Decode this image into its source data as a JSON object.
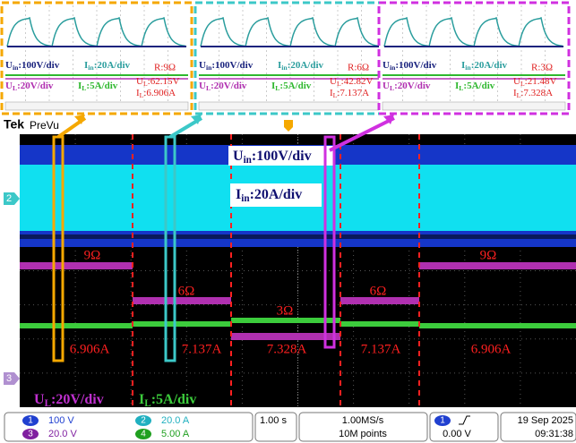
{
  "header": {
    "brand": "Tek",
    "mode": "PreVu"
  },
  "insets": [
    {
      "uin": {
        "base": "U",
        "sub": "in",
        "rest": ":100V/div"
      },
      "iin": {
        "base": "I",
        "sub": "in",
        "rest": ":20A/div"
      },
      "r": "R:9Ω",
      "ul": {
        "base": "U",
        "sub": "L",
        "rest": ":20V/div"
      },
      "il": {
        "base": "I",
        "sub": "L",
        "rest": ":5A/div"
      },
      "ul_value": {
        "base": "U",
        "sub": "L",
        "rest": ":62.15V"
      },
      "il_value": {
        "base": "I",
        "sub": "L",
        "rest": ":6.906A"
      }
    },
    {
      "uin": {
        "base": "U",
        "sub": "in",
        "rest": ":100V/div"
      },
      "iin": {
        "base": "I",
        "sub": "in",
        "rest": ":20A/div"
      },
      "r": "R:6Ω",
      "ul": {
        "base": "U",
        "sub": "L",
        "rest": ":20V/div"
      },
      "il": {
        "base": "I",
        "sub": "L",
        "rest": ":5A/div"
      },
      "ul_value": {
        "base": "U",
        "sub": "L",
        "rest": ":42.82V"
      },
      "il_value": {
        "base": "I",
        "sub": "L",
        "rest": ":7.137A"
      }
    },
    {
      "uin": {
        "base": "U",
        "sub": "in",
        "rest": ":100V/div"
      },
      "iin": {
        "base": "I",
        "sub": "in",
        "rest": ":20A/div"
      },
      "r": "R:3Ω",
      "ul": {
        "base": "U",
        "sub": "L",
        "rest": ":20V/div"
      },
      "il": {
        "base": "I",
        "sub": "L",
        "rest": ":5A/div"
      },
      "ul_value": {
        "base": "U",
        "sub": "L",
        "rest": ":21.48V"
      },
      "il_value": {
        "base": "I",
        "sub": "L",
        "rest": ":7.328A"
      }
    }
  ],
  "scope": {
    "uin": {
      "base": "U",
      "sub": "in",
      "rest": ":100V/div"
    },
    "iin": {
      "base": "I",
      "sub": "in",
      "rest": ":20A/div"
    },
    "resistances": [
      "9Ω",
      "6Ω",
      "3Ω",
      "6Ω",
      "9Ω"
    ],
    "currents": [
      "6.906A",
      "7.137A",
      "7.328A",
      "7.137A",
      "6.906A"
    ],
    "ul": {
      "base": "U",
      "sub": "L",
      "rest": ":20V/div"
    },
    "il": {
      "base": "I",
      "sub": "L",
      "rest": ":5A/div"
    },
    "channels": [
      "2",
      "3"
    ]
  },
  "status": {
    "ch1": {
      "num": "1",
      "value": "100 V"
    },
    "ch3": {
      "num": "3",
      "value": "20.0 V"
    },
    "ch2": {
      "num": "2",
      "value": "20.0 A"
    },
    "ch4": {
      "num": "4",
      "value": "5.00 A"
    },
    "timebase": "1.00 s",
    "rate": "1.00MS/s",
    "points": "10M points",
    "trigger": {
      "num": "1",
      "value": "0.00 V"
    },
    "date": "19 Sep 2025",
    "time": "09:31:38"
  }
}
